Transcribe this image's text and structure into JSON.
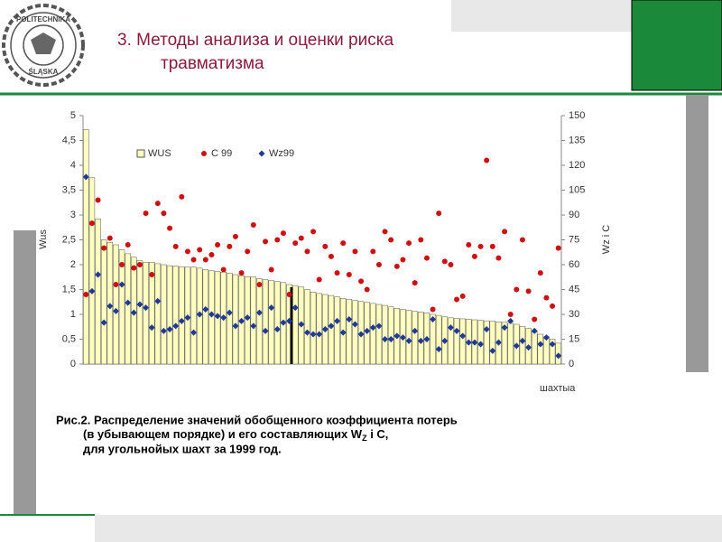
{
  "header": {
    "title_line1": "3.  Методы анализа и оценки риска",
    "title_line2": "травматизма",
    "logo_top": "POLITECHNIKA",
    "logo_bottom": "ŚLĄSKA"
  },
  "chart_data": {
    "type": "bar",
    "legend": [
      "WUS",
      "C 99",
      "Wz99"
    ],
    "ylabel": "Wus",
    "y2label": "Wz i C",
    "xlabel": "шахтыа",
    "categories": [
      null,
      null,
      null,
      null,
      null,
      null,
      null,
      null,
      null,
      null,
      null,
      null,
      null,
      null,
      null,
      null,
      null,
      null,
      null,
      null,
      null,
      null,
      null,
      null,
      null,
      null,
      null,
      null,
      null,
      null,
      null,
      null,
      null,
      null,
      null,
      null,
      null,
      null,
      null,
      null,
      null,
      null,
      null,
      null,
      null,
      null,
      null,
      null,
      null,
      null,
      null,
      null,
      null,
      null,
      null,
      null,
      null,
      null,
      null,
      null,
      null,
      null,
      null,
      null,
      null,
      null,
      null,
      null,
      null,
      null,
      null,
      null,
      null,
      null,
      null,
      null,
      null,
      null,
      null,
      null
    ],
    "series": [
      {
        "name": "WUS",
        "color": "#ffffc0",
        "values": [
          4.72,
          3.75,
          2.92,
          2.5,
          2.45,
          2.4,
          2.3,
          2.22,
          2.15,
          2.08,
          2.05,
          2.05,
          2.02,
          2.0,
          1.98,
          1.97,
          1.96,
          1.95,
          1.95,
          1.93,
          1.9,
          1.88,
          1.86,
          1.85,
          1.83,
          1.8,
          1.78,
          1.76,
          1.75,
          1.72,
          1.7,
          1.68,
          1.66,
          1.64,
          1.6,
          1.58,
          1.55,
          1.5,
          1.45,
          1.42,
          1.4,
          1.38,
          1.35,
          1.32,
          1.3,
          1.28,
          1.26,
          1.24,
          1.22,
          1.2,
          1.18,
          1.15,
          1.12,
          1.1,
          1.08,
          1.06,
          1.05,
          1.03,
          1.0,
          0.98,
          0.95,
          0.93,
          0.92,
          0.91,
          0.9,
          0.89,
          0.88,
          0.87,
          0.86,
          0.85,
          0.84,
          0.82,
          0.8,
          0.76,
          0.72,
          0.65,
          0.6,
          0.55,
          0.5,
          0.42
        ]
      },
      {
        "name": "C 99",
        "color": "#cc1111",
        "axis": "y2",
        "values": [
          42,
          85,
          99,
          70,
          76,
          48,
          60,
          72,
          58,
          60,
          91,
          54,
          97,
          91,
          82,
          71,
          101,
          68,
          63,
          69,
          63,
          66,
          72,
          57,
          71,
          77,
          55,
          68,
          84,
          48,
          74,
          57,
          75,
          79,
          42,
          73,
          76,
          68,
          80,
          51,
          71,
          65,
          55,
          73,
          54,
          68,
          50,
          45,
          68,
          60,
          80,
          75,
          59,
          63,
          73,
          49,
          75,
          64,
          33,
          91,
          62,
          60,
          39,
          41,
          72,
          65,
          71,
          123,
          71,
          64,
          80,
          30,
          45,
          75,
          44,
          27,
          55,
          40,
          35,
          70
        ]
      },
      {
        "name": "Wz99",
        "color": "#1f3a93",
        "axis": "y2",
        "values": [
          113,
          44,
          54,
          25,
          35,
          32,
          48,
          37,
          31,
          36,
          34,
          22,
          38,
          20,
          21,
          23,
          26,
          28,
          19,
          30,
          33,
          30,
          29,
          28,
          31,
          23,
          26,
          28,
          23,
          31,
          20,
          34,
          21,
          25,
          26,
          34,
          24,
          19,
          18,
          18,
          21,
          23,
          26,
          19,
          27,
          24,
          18,
          20,
          22,
          23,
          15,
          15,
          17,
          16,
          14,
          20,
          14,
          15,
          27,
          9,
          14,
          22,
          20,
          17,
          13,
          13,
          12,
          21,
          8,
          13,
          22,
          26,
          11,
          14,
          10,
          20,
          12,
          16,
          12,
          5
        ]
      }
    ],
    "ylim": [
      0,
      5
    ],
    "yticks": [
      0,
      {
        "value": 0.5,
        "label": "0,5"
      },
      1,
      {
        "value": 1.5,
        "label": "1,5"
      },
      2,
      {
        "value": 2.5,
        "label": "2,5"
      },
      3,
      {
        "value": 3.5,
        "label": "3,5"
      },
      4,
      {
        "value": 4.5,
        "label": "4,5"
      },
      5
    ],
    "y2lim": [
      0,
      150
    ],
    "y2ticks": [
      0,
      15,
      30,
      45,
      60,
      75,
      90,
      105,
      120,
      135,
      150
    ]
  },
  "caption": {
    "line1": "Рис.2. Распределение значений обобщенного коэффициента потерь",
    "line2": "(в убывающем порядке) и его составляющих W",
    "line2_sub": "Z",
    "line2_end": " i C,",
    "line3": "для угольнойых шахт за 1999 год."
  }
}
